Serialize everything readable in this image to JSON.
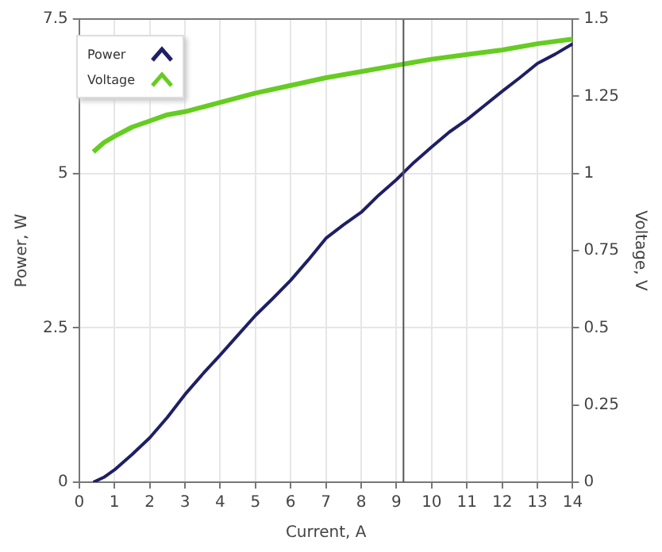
{
  "chart_data": {
    "type": "line",
    "xlabel": "Current, A",
    "ylabel": "Power, W",
    "y2label": "Voltage, V",
    "xlim": [
      0,
      14
    ],
    "xticks": [
      0,
      1,
      2,
      3,
      4,
      5,
      6,
      7,
      8,
      9,
      10,
      11,
      12,
      13,
      14
    ],
    "ylim": [
      0,
      7.5
    ],
    "yticks": [
      0,
      2.5,
      5,
      7.5
    ],
    "y2lim": [
      0,
      1.5
    ],
    "y2ticks": [
      0,
      0.25,
      0.5,
      0.75,
      1,
      1.25,
      1.5
    ],
    "grid": true,
    "legend": "top left",
    "marker": "none",
    "line_style": "solid",
    "ref_lines": [
      {
        "axis": "x",
        "value": 9.2,
        "color": "#555555"
      }
    ],
    "series": [
      {
        "name": "Power",
        "color": "#1f1f66",
        "x": [
          0.4,
          0.7,
          1,
          1.5,
          2,
          2.5,
          3,
          3.5,
          4,
          4.5,
          5,
          5.5,
          6,
          6.5,
          7,
          7.5,
          8,
          8.5,
          9,
          9.5,
          10,
          10.5,
          11,
          11.5,
          12,
          12.5,
          13,
          13.5,
          14
        ],
        "values": [
          0,
          0.08,
          0.2,
          0.45,
          0.72,
          1.05,
          1.42,
          1.75,
          2.06,
          2.38,
          2.7,
          2.98,
          3.27,
          3.6,
          3.95,
          4.17,
          4.37,
          4.65,
          4.9,
          5.18,
          5.43,
          5.67,
          5.87,
          6.1,
          6.33,
          6.55,
          6.78,
          6.93,
          7.1
        ]
      },
      {
        "name": "Voltage",
        "color": "#66cc22",
        "axis": "y2",
        "x": [
          0.4,
          0.7,
          1,
          1.5,
          2,
          2.5,
          3,
          4,
          5,
          6,
          7,
          8,
          9,
          10,
          11,
          12,
          13,
          14
        ],
        "values": [
          1.07,
          1.1,
          1.12,
          1.15,
          1.17,
          1.19,
          1.2,
          1.23,
          1.26,
          1.285,
          1.31,
          1.33,
          1.35,
          1.37,
          1.385,
          1.4,
          1.42,
          1.435
        ]
      }
    ]
  }
}
